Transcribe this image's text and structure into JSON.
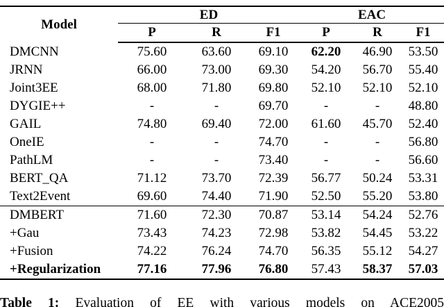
{
  "page": {
    "background_color": "#ffffff",
    "text_color": "#000000"
  },
  "table": {
    "header": {
      "model_label": "Model",
      "groups": [
        {
          "label": "ED"
        },
        {
          "label": "EAC"
        }
      ],
      "sub_cols": [
        "P",
        "R",
        "F1",
        "P",
        "R",
        "F1"
      ]
    },
    "rows": [
      {
        "model": "DMCNN",
        "cells": [
          "75.60",
          "63.60",
          "69.10",
          "62.20",
          "46.90",
          "53.50"
        ]
      },
      {
        "model": "JRNN",
        "cells": [
          "66.00",
          "73.00",
          "69.30",
          "54.20",
          "56.70",
          "55.40"
        ]
      },
      {
        "model": "Joint3EE",
        "cells": [
          "68.00",
          "71.80",
          "69.80",
          "52.10",
          "52.10",
          "52.10"
        ]
      },
      {
        "model": "DYGIE++",
        "cells": [
          "-",
          "-",
          "69.70",
          "-",
          "-",
          "48.80"
        ]
      },
      {
        "model": "GAIL",
        "cells": [
          "74.80",
          "69.40",
          "72.00",
          "61.60",
          "45.70",
          "52.40"
        ]
      },
      {
        "model": "OneIE",
        "cells": [
          "-",
          "-",
          "74.70",
          "-",
          "-",
          "56.80"
        ]
      },
      {
        "model": "PathLM",
        "cells": [
          "-",
          "-",
          "73.40",
          "-",
          "-",
          "56.60"
        ]
      },
      {
        "model": "BERT_QA",
        "cells": [
          "71.12",
          "73.70",
          "72.39",
          "56.77",
          "50.24",
          "53.31"
        ]
      },
      {
        "model": "Text2Event",
        "cells": [
          "69.60",
          "74.40",
          "71.90",
          "52.50",
          "55.20",
          "53.80"
        ]
      },
      {
        "model": "DMBERT",
        "cells": [
          "71.60",
          "72.30",
          "70.87",
          "53.14",
          "54.24",
          "52.76"
        ]
      },
      {
        "model": "+Gau",
        "cells": [
          "73.43",
          "74.23",
          "72.98",
          "53.82",
          "54.45",
          "53.22"
        ]
      },
      {
        "model": "+Fusion",
        "cells": [
          "74.22",
          "76.24",
          "74.70",
          "56.35",
          "55.12",
          "54.27"
        ]
      },
      {
        "model": "+Regularization",
        "cells": [
          "77.16",
          "77.96",
          "76.80",
          "57.43",
          "58.37",
          "57.03"
        ]
      }
    ]
  },
  "caption": {
    "label": "Table 1:",
    "text": "Evaluation of EE with various models on ACE2005"
  }
}
